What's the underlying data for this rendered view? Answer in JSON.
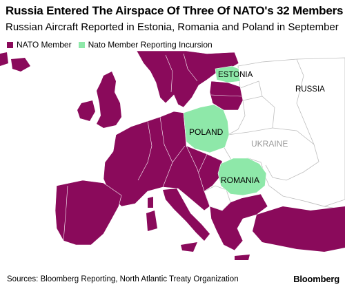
{
  "header": {
    "title": "Russia Entered The Airspace Of Three Of NATO's 32 Members",
    "subtitle": "Russian Aircraft Reported in Estonia, Romania and Poland in September"
  },
  "legend": [
    {
      "label": "NATO Member",
      "color": "#8a0a5b"
    },
    {
      "label": "Nato Member Reporting Incursion",
      "color": "#8ee8a9"
    }
  ],
  "map": {
    "colors": {
      "nato": "#8a0a5b",
      "incursion": "#8ee8a9",
      "non_nato": "#ffffff",
      "border": "#bdbdbd"
    },
    "labels": {
      "estonia": "ESTONIA",
      "russia": "RUSSIA",
      "poland": "POLAND",
      "ukraine": "UKRAINE",
      "romania": "ROMANIA"
    }
  },
  "footer": {
    "source": "Sources: Bloomberg Reporting, North Atlantic Treaty Organization",
    "logo": "Bloomberg"
  }
}
